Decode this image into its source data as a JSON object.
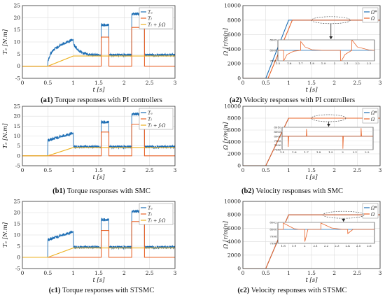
{
  "colors": {
    "blue": "#1f6fb5",
    "orange": "#e8642a",
    "yellow": "#edb120",
    "grid": "#dcdcdc",
    "axis": "#333333"
  },
  "captions": [
    {
      "id": "a1",
      "text": "Torque responses with PI controllers"
    },
    {
      "id": "a2",
      "text": "Velocity responses with PI controllers"
    },
    {
      "id": "b1",
      "text": "Torque responses with SMC"
    },
    {
      "id": "b2",
      "text": "Velocity responses with SMC"
    },
    {
      "id": "c1",
      "text": "Torque responses with STSMC"
    },
    {
      "id": "c2",
      "text": "Velocity responses with STSMC"
    }
  ],
  "chart_data": [
    {
      "id": "a1",
      "type": "line",
      "xlabel": "t [s]",
      "ylabel": "Tₑ [N.m]",
      "xlim": [
        0,
        3
      ],
      "ylim": [
        -5,
        25
      ],
      "xticks": [
        "0",
        "0.5",
        "1",
        "1.5",
        "2",
        "2.5",
        "3"
      ],
      "yticks": [
        "-5",
        "0",
        "5",
        "10",
        "15",
        "20",
        "25"
      ],
      "grid": true,
      "legend_position": "top-right",
      "series": [
        {
          "name": "Tₑ",
          "color": "blue",
          "noisy": true,
          "band": 1.2,
          "x": [
            0,
            0.5,
            0.5,
            0.55,
            0.6,
            0.7,
            0.8,
            0.9,
            1.0,
            1.0,
            1.1,
            1.2,
            1.3,
            1.4,
            1.55,
            1.55,
            1.7,
            1.7,
            2.15,
            2.15,
            2.4,
            2.4,
            3.0
          ],
          "y": [
            0,
            0,
            2,
            5,
            6.5,
            8,
            9.2,
            10.2,
            11,
            9,
            6.5,
            5.3,
            4.8,
            4.6,
            4.6,
            17,
            17,
            4.6,
            4.6,
            21.5,
            21.5,
            4.6,
            4.6
          ]
        },
        {
          "name": "Tₗ",
          "color": "orange",
          "noisy": false,
          "x": [
            0,
            1.55,
            1.55,
            1.7,
            1.7,
            2.15,
            2.15,
            2.4,
            2.4,
            3.0
          ],
          "y": [
            0,
            0,
            12,
            12,
            0,
            0,
            16,
            16,
            0,
            0
          ]
        },
        {
          "name": "Tₗ + fᵣΩ",
          "color": "yellow",
          "noisy": false,
          "x": [
            0,
            0.5,
            1.0,
            3.0
          ],
          "y": [
            0,
            0,
            4.2,
            4.2
          ]
        }
      ]
    },
    {
      "id": "a2",
      "type": "line",
      "xlabel": "t [s]",
      "ylabel": "Ω [r/min]",
      "xlim": [
        0,
        3
      ],
      "ylim": [
        0,
        10000
      ],
      "xticks": [
        "0",
        "0.5",
        "1",
        "1.5",
        "2",
        "2.5",
        "3"
      ],
      "yticks": [
        "0",
        "2000",
        "4000",
        "6000",
        "8000",
        "10000"
      ],
      "grid": true,
      "legend_position": "top-right",
      "series": [
        {
          "name": "Ω*",
          "color": "blue",
          "x": [
            0,
            0.5,
            1.0,
            3.0
          ],
          "y": [
            0,
            0,
            8000,
            8000
          ]
        },
        {
          "name": "Ω",
          "color": "orange",
          "x": [
            0,
            0.55,
            1.08,
            3.0
          ],
          "y": [
            0,
            0,
            8000,
            8000
          ]
        }
      ],
      "inset": {
        "xlim": [
          1.5,
          2.35
        ],
        "ylim": [
          7995,
          8005
        ],
        "xticks": [
          "1.5",
          "1.6",
          "1.7",
          "1.8",
          "1.9",
          "2",
          "2.1",
          "2.2",
          "2.3"
        ],
        "yticks": [
          "7995",
          "8000",
          "8005"
        ],
        "series": [
          {
            "color": "blue",
            "x": [
              1.5,
              2.35
            ],
            "y": [
              8000,
              8000
            ]
          },
          {
            "color": "orange",
            "x": [
              1.5,
              1.55,
              1.551,
              1.58,
              1.64,
              1.7,
              1.701,
              1.74,
              1.8,
              1.9,
              2.0,
              2.05,
              2.051,
              2.09,
              2.15,
              2.151,
              2.2,
              2.3,
              2.35
            ],
            "y": [
              8000,
              8000,
              7995,
              7998,
              7999.6,
              8000,
              8004.2,
              8001.6,
              8000.3,
              8000,
              8000,
              8000,
              7994.2,
              7998,
              8000,
              8005,
              8001.6,
              8000.2,
              8000
            ]
          }
        ]
      }
    },
    {
      "id": "b1",
      "type": "line",
      "xlabel": "t [s]",
      "ylabel": "Tₑ [N.m]",
      "xlim": [
        0,
        3
      ],
      "ylim": [
        -5,
        25
      ],
      "xticks": [
        "0",
        "0.5",
        "1",
        "1.5",
        "2",
        "2.5",
        "3"
      ],
      "yticks": [
        "-5",
        "0",
        "5",
        "10",
        "15",
        "20",
        "25"
      ],
      "grid": true,
      "legend_position": "top-right",
      "series": [
        {
          "name": "Tₑ",
          "color": "blue",
          "noisy": true,
          "band": 1.5,
          "x": [
            0,
            0.5,
            0.5,
            1.0,
            1.0,
            1.55,
            1.55,
            1.7,
            1.7,
            2.15,
            2.15,
            2.4,
            2.4,
            3.0
          ],
          "y": [
            0,
            0,
            7.8,
            11.5,
            4.5,
            4.5,
            17,
            17,
            4.5,
            4.5,
            21,
            21,
            4.5,
            4.5
          ]
        },
        {
          "name": "Tₗ",
          "color": "orange",
          "noisy": false,
          "x": [
            0,
            1.55,
            1.55,
            1.7,
            1.7,
            2.15,
            2.15,
            2.4,
            2.4,
            3.0
          ],
          "y": [
            0,
            0,
            12,
            12,
            0,
            0,
            16,
            16,
            0,
            0
          ]
        },
        {
          "name": "Tₗ + fᵣΩ",
          "color": "yellow",
          "noisy": false,
          "x": [
            0,
            0.5,
            1.0,
            3.0
          ],
          "y": [
            0,
            0,
            4.2,
            4.2
          ]
        }
      ]
    },
    {
      "id": "b2",
      "type": "line",
      "xlabel": "t [s]",
      "ylabel": "Ω [r/min]",
      "xlim": [
        0,
        3
      ],
      "ylim": [
        0,
        10000
      ],
      "xticks": [
        "0",
        "0.5",
        "1",
        "1.5",
        "2",
        "2.5",
        "3"
      ],
      "yticks": [
        "0",
        "2000",
        "4000",
        "6000",
        "8000",
        "10000"
      ],
      "grid": true,
      "legend_position": "top-right",
      "series": [
        {
          "name": "Ω*",
          "color": "blue",
          "x": [
            0,
            0.5,
            1.0,
            3.0
          ],
          "y": [
            0,
            0,
            8000,
            8000
          ]
        },
        {
          "name": "Ω",
          "color": "orange",
          "x": [
            0,
            0.5,
            1.0,
            3.0
          ],
          "y": [
            0,
            0,
            8000,
            8000
          ]
        }
      ],
      "inset": {
        "xlim": [
          1.5,
          2.25
        ],
        "ylim": [
          7985,
          8010
        ],
        "xticks": [
          "1.5",
          "1.6",
          "1.7",
          "1.8",
          "1.9",
          "2",
          "2.1",
          "2.2"
        ],
        "yticks": [
          "7985",
          "7990",
          "7995",
          "8000",
          "8005",
          "8010"
        ],
        "series": [
          {
            "color": "blue",
            "x": [
              1.5,
              2.25
            ],
            "y": [
              8000,
              8000
            ]
          },
          {
            "color": "orange",
            "x": [
              1.5,
              1.55,
              1.551,
              1.555,
              1.7,
              1.701,
              1.705,
              2.0,
              2.001,
              2.005,
              2.15,
              2.151,
              2.155,
              2.25
            ],
            "y": [
              8000,
              8000,
              7988,
              8000,
              8000,
              8008,
              8000,
              8000,
              7986,
              8000,
              8000,
              8009,
              8000,
              8000
            ]
          }
        ]
      }
    },
    {
      "id": "c1",
      "type": "line",
      "xlabel": "t [s]",
      "ylabel": "Tₑ [N.m]",
      "xlim": [
        0,
        3
      ],
      "ylim": [
        -5,
        25
      ],
      "xticks": [
        "0",
        "0.5",
        "1",
        "1.5",
        "2",
        "2.5",
        "3"
      ],
      "yticks": [
        "-5",
        "0",
        "5",
        "10",
        "15",
        "20",
        "25"
      ],
      "grid": true,
      "legend_position": "top-right",
      "series": [
        {
          "name": "Tₑ",
          "color": "blue",
          "noisy": true,
          "band": 1.3,
          "x": [
            0,
            0.5,
            0.5,
            1.0,
            1.0,
            1.55,
            1.55,
            1.7,
            1.7,
            2.15,
            2.15,
            2.4,
            2.4,
            3.0
          ],
          "y": [
            0,
            0,
            7.8,
            11.5,
            4.5,
            4.5,
            16.8,
            16.8,
            4.5,
            4.5,
            20.5,
            20.5,
            4.5,
            4.5
          ]
        },
        {
          "name": "Tₗ",
          "color": "orange",
          "noisy": false,
          "x": [
            0,
            1.55,
            1.55,
            1.7,
            1.7,
            2.15,
            2.15,
            2.4,
            2.4,
            3.0
          ],
          "y": [
            0,
            0,
            12,
            12,
            0,
            0,
            16,
            16,
            0,
            0
          ]
        },
        {
          "name": "Tₗ + fᵣΩ",
          "color": "yellow",
          "noisy": false,
          "x": [
            0,
            0.5,
            1.0,
            3.0
          ],
          "y": [
            0,
            0,
            4.2,
            4.2
          ]
        }
      ]
    },
    {
      "id": "c2",
      "type": "line",
      "xlabel": "t [s]",
      "ylabel": "Ω [r/min]",
      "xlim": [
        0,
        3
      ],
      "ylim": [
        0,
        10000
      ],
      "xticks": [
        "0",
        "0.5",
        "1",
        "1.5",
        "2",
        "2.5",
        "3"
      ],
      "yticks": [
        "0",
        "2000",
        "4000",
        "6000",
        "8000",
        "10000"
      ],
      "grid": true,
      "legend_position": "top-right",
      "series": [
        {
          "name": "Ω*",
          "color": "blue",
          "x": [
            0,
            0.5,
            1.0,
            3.0
          ],
          "y": [
            0,
            0,
            8000,
            8000
          ]
        },
        {
          "name": "Ω",
          "color": "orange",
          "x": [
            0,
            0.5,
            1.0,
            3.0
          ],
          "y": [
            0,
            0,
            8000,
            8000
          ]
        }
      ],
      "inset": {
        "xlim": [
          1.75,
          2.65
        ],
        "ylim": [
          7996,
          8002
        ],
        "xticks": [
          "1.8",
          "1.9",
          "2",
          "2.1",
          "2.2",
          "2.3",
          "2.4",
          "2.5",
          "2.6"
        ],
        "yticks": [
          "7996",
          "7998",
          "8000",
          "8002"
        ],
        "series": [
          {
            "color": "blue",
            "x": [
              1.75,
              2.65
            ],
            "y": [
              8000,
              8000
            ]
          },
          {
            "color": "orange",
            "x": [
              1.75,
              1.8,
              1.801,
              1.9,
              1.95,
              2.0,
              2.001,
              2.03,
              2.15,
              2.151,
              2.25,
              2.35,
              2.4,
              2.401,
              2.45,
              2.65
            ],
            "y": [
              8000,
              8000,
              8001.8,
              8000.2,
              8000,
              8000,
              7996.5,
              8000,
              8000,
              8001.8,
              8000.4,
              8000,
              8000,
              7998.8,
              8000,
              8000
            ]
          }
        ]
      }
    }
  ]
}
